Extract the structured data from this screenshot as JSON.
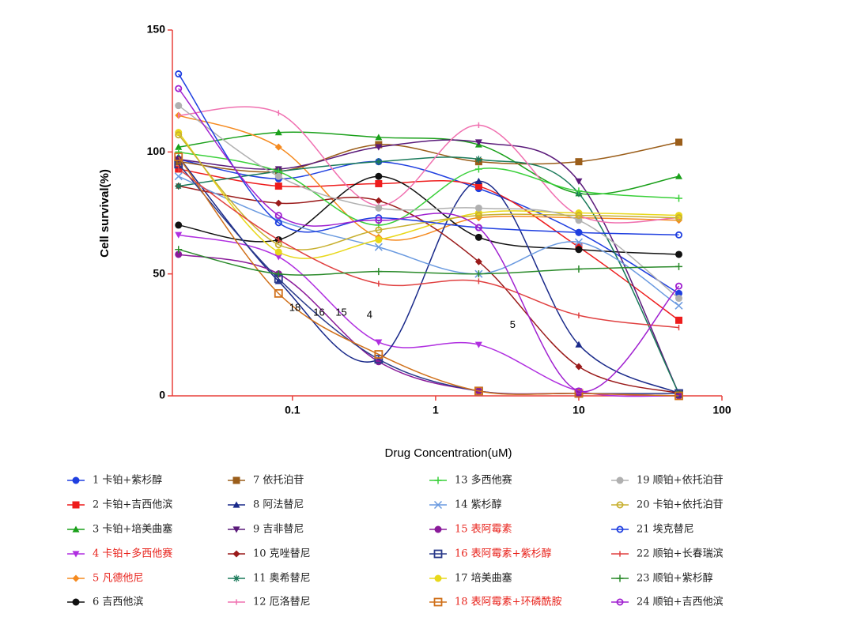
{
  "chart_data": {
    "type": "line",
    "x_label": "Drug Concentration(uM)",
    "y_label": "Cell survival(%)",
    "xscale": "log",
    "xlim": [
      0.0145,
      100
    ],
    "xticks": [
      0.1,
      1,
      10,
      100
    ],
    "ylim": [
      0,
      150
    ],
    "yticks": [
      0,
      50,
      100,
      150
    ],
    "axis_color": "#e8413c",
    "x": [
      0.016,
      0.08,
      0.4,
      2,
      10,
      50
    ],
    "series": [
      {
        "name": "1 卡铂+紫杉醇",
        "color": "#1f3fe0",
        "marker": "circle",
        "values": [
          97,
          89,
          96,
          85,
          67,
          42
        ]
      },
      {
        "name": "2 卡铂+吉西他滨",
        "color": "#ee1c1c",
        "marker": "square",
        "values": [
          93,
          86,
          87,
          86,
          61,
          31
        ]
      },
      {
        "name": "3 卡铂+培美曲塞",
        "color": "#1aa01a",
        "marker": "triangle",
        "values": [
          102,
          108,
          106,
          103,
          83,
          90
        ]
      },
      {
        "name": "4 卡铂+多西他赛",
        "color": "#b02fe0",
        "marker": "down",
        "label_color": "#e8231c",
        "values": [
          66,
          57,
          22,
          21,
          2,
          0
        ]
      },
      {
        "name": "5 凡德他尼",
        "color": "#f58a1f",
        "marker": "diamond",
        "label_color": "#e8231c",
        "values": [
          115,
          102,
          65,
          73,
          73,
          72
        ]
      },
      {
        "name": "6 吉西他滨",
        "color": "#111111",
        "marker": "circle",
        "values": [
          70,
          64,
          90,
          65,
          60,
          58
        ]
      },
      {
        "name": "7 依托泊苷",
        "color": "#9b5e1a",
        "marker": "square",
        "values": [
          96,
          92,
          103,
          96,
          96,
          104
        ]
      },
      {
        "name": "8 阿法替尼",
        "color": "#1a2a8a",
        "marker": "triangle",
        "values": [
          98,
          47,
          15,
          88,
          21,
          1
        ]
      },
      {
        "name": "9 吉非替尼",
        "color": "#5a1a7a",
        "marker": "down",
        "values": [
          97,
          93,
          102,
          104,
          88,
          1
        ]
      },
      {
        "name": "10 克唑替尼",
        "color": "#9a1a1a",
        "marker": "diamond",
        "values": [
          86,
          79,
          80,
          55,
          12,
          1
        ]
      },
      {
        "name": "11 奥希替尼",
        "color": "#1a7a5a",
        "marker": "star",
        "values": [
          86,
          92,
          96,
          97,
          83,
          1
        ]
      },
      {
        "name": "12 厄洛替尼",
        "color": "#f070b0",
        "marker": "dash",
        "values": [
          115,
          116,
          78,
          111,
          74,
          73
        ]
      },
      {
        "name": "13 多西他赛",
        "color": "#3ad03a",
        "marker": "plus",
        "values": [
          100,
          92,
          70,
          93,
          84,
          81
        ]
      },
      {
        "name": "14 紫杉醇",
        "color": "#6a9ae0",
        "marker": "cross",
        "values": [
          90,
          72,
          61,
          50,
          63,
          37
        ]
      },
      {
        "name": "15 表阿霉素",
        "color": "#8a1a9a",
        "marker": "circle",
        "label_color": "#e8231c",
        "values": [
          58,
          50,
          14,
          2,
          1,
          0
        ]
      },
      {
        "name": "16 表阿霉素+紫杉醇",
        "color": "#2a3a8a",
        "marker": "open-square",
        "label_color": "#e8231c",
        "values": [
          95,
          48,
          15,
          2,
          1,
          1
        ]
      },
      {
        "name": "17 培美曲塞",
        "color": "#e8d81a",
        "marker": "circle",
        "values": [
          108,
          59,
          64,
          75,
          75,
          74
        ]
      },
      {
        "name": "18 表阿霉素+环磷酰胺",
        "color": "#d0701a",
        "marker": "open-square",
        "label_color": "#e8231c",
        "values": [
          98,
          42,
          17,
          2,
          1,
          0
        ]
      },
      {
        "name": "19 顺铂+依托泊苷",
        "color": "#b0b0b0",
        "marker": "circle",
        "values": [
          119,
          90,
          77,
          77,
          72,
          40
        ]
      },
      {
        "name": "20 卡铂+依托泊苷",
        "color": "#c8b030",
        "marker": "open-circle",
        "values": [
          107,
          62,
          68,
          74,
          74,
          73
        ]
      },
      {
        "name": "21 埃克替尼",
        "color": "#1f3fe0",
        "marker": "open-circle",
        "values": [
          132,
          71,
          73,
          69,
          67,
          66
        ]
      },
      {
        "name": "22 顺铂+长春瑞滨",
        "color": "#e04040",
        "marker": "dash",
        "values": [
          93,
          64,
          46,
          47,
          33,
          28
        ]
      },
      {
        "name": "23 顺铂+紫杉醇",
        "color": "#2a8a2a",
        "marker": "plus",
        "values": [
          60,
          50,
          51,
          50,
          52,
          53
        ]
      },
      {
        "name": "24 顺铂+吉西他滨",
        "color": "#a020d0",
        "marker": "open-circle",
        "values": [
          126,
          74,
          72,
          69,
          2,
          45
        ]
      }
    ],
    "annotations": [
      {
        "text": "18",
        "x": 0.095,
        "y": 36
      },
      {
        "text": "16",
        "x": 0.14,
        "y": 34
      },
      {
        "text": "15",
        "x": 0.2,
        "y": 34
      },
      {
        "text": "4",
        "x": 0.33,
        "y": 33
      },
      {
        "text": "5",
        "x": 3.3,
        "y": 29
      }
    ]
  }
}
